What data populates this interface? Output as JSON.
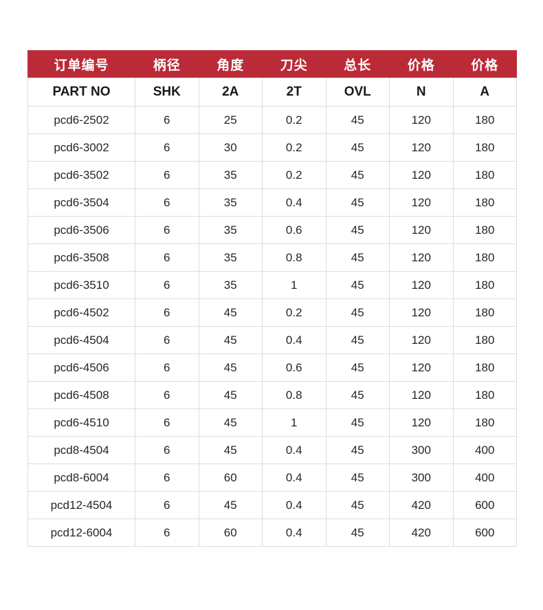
{
  "table": {
    "columns_cn": [
      "订单编号",
      "柄径",
      "角度",
      "刀尖",
      "总长",
      "价格",
      "价格"
    ],
    "columns_en": [
      "PART NO",
      "SHK",
      "2A",
      "2T",
      "OVL",
      "N",
      "A"
    ],
    "rows": [
      [
        "pcd6-2502",
        "6",
        "25",
        "0.2",
        "45",
        "120",
        "180"
      ],
      [
        "pcd6-3002",
        "6",
        "30",
        "0.2",
        "45",
        "120",
        "180"
      ],
      [
        "pcd6-3502",
        "6",
        "35",
        "0.2",
        "45",
        "120",
        "180"
      ],
      [
        "pcd6-3504",
        "6",
        "35",
        "0.4",
        "45",
        "120",
        "180"
      ],
      [
        "pcd6-3506",
        "6",
        "35",
        "0.6",
        "45",
        "120",
        "180"
      ],
      [
        "pcd6-3508",
        "6",
        "35",
        "0.8",
        "45",
        "120",
        "180"
      ],
      [
        "pcd6-3510",
        "6",
        "35",
        "1",
        "45",
        "120",
        "180"
      ],
      [
        "pcd6-4502",
        "6",
        "45",
        "0.2",
        "45",
        "120",
        "180"
      ],
      [
        "pcd6-4504",
        "6",
        "45",
        "0.4",
        "45",
        "120",
        "180"
      ],
      [
        "pcd6-4506",
        "6",
        "45",
        "0.6",
        "45",
        "120",
        "180"
      ],
      [
        "pcd6-4508",
        "6",
        "45",
        "0.8",
        "45",
        "120",
        "180"
      ],
      [
        "pcd6-4510",
        "6",
        "45",
        "1",
        "45",
        "120",
        "180"
      ],
      [
        "pcd8-4504",
        "6",
        "45",
        "0.4",
        "45",
        "300",
        "400"
      ],
      [
        "pcd8-6004",
        "6",
        "60",
        "0.4",
        "45",
        "300",
        "400"
      ],
      [
        "pcd12-4504",
        "6",
        "45",
        "0.4",
        "45",
        "420",
        "600"
      ],
      [
        "pcd12-6004",
        "6",
        "60",
        "0.4",
        "45",
        "420",
        "600"
      ]
    ],
    "colors": {
      "header_bg": "#bb2b37",
      "header_text": "#ffffff",
      "border": "#dddddd",
      "body_text": "#262626"
    }
  }
}
